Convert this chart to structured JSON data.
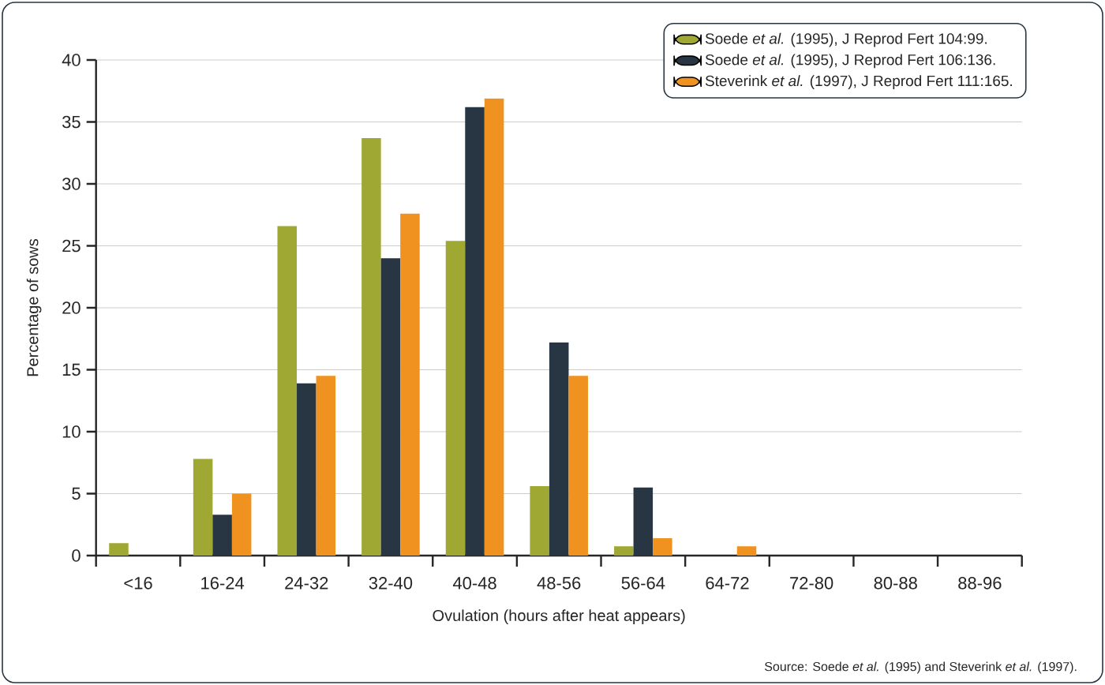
{
  "chart_data": {
    "type": "bar",
    "xlabel": "Ovulation (hours after heat appears)",
    "ylabel": "Percentage of sows",
    "categories": [
      "<16",
      "16-24",
      "24-32",
      "32-40",
      "40-48",
      "48-56",
      "56-64",
      "64-72",
      "72-80",
      "80-88",
      "88-96"
    ],
    "series": [
      {
        "name": "Soede *et al.* (1995), J Reprod Fert 104:99.",
        "color": "#a0a834",
        "values": [
          1.0,
          7.8,
          26.6,
          33.7,
          25.4,
          5.6,
          0.75,
          0,
          0,
          0,
          0
        ]
      },
      {
        "name": "Soede *et al.* (1995), J Reprod Fert 106:136.",
        "color": "#283543",
        "values": [
          0,
          3.3,
          13.9,
          24.0,
          36.2,
          17.2,
          5.5,
          0,
          0,
          0,
          0
        ]
      },
      {
        "name": "Steverink *et al.* (1997), J Reprod Fert 111:165.",
        "color": "#f09220",
        "values": [
          0,
          5.0,
          14.5,
          27.6,
          36.9,
          14.5,
          1.4,
          0.75,
          0,
          0,
          0
        ]
      }
    ],
    "ylim": [
      0,
      40
    ],
    "yticks": [
      0,
      5,
      10,
      15,
      20,
      25,
      30,
      35,
      40
    ],
    "grid": "y",
    "legend": "top right",
    "annotations": [
      "Source: Soede *et al.* (1995) and Steverink *et al.* (1997)."
    ]
  }
}
